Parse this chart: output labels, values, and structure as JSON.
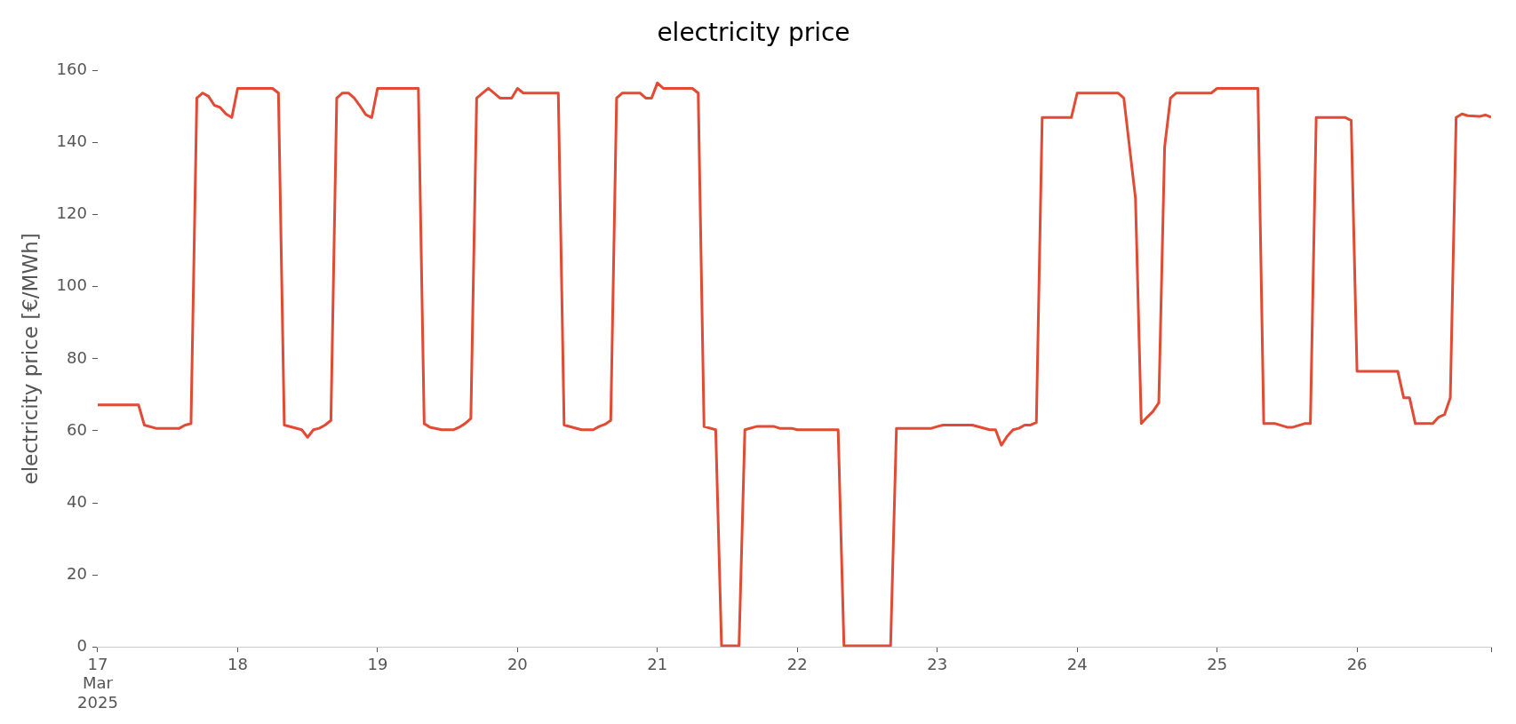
{
  "chart_data": {
    "type": "line",
    "title": "electricity price",
    "ylabel": "electricity price [€/MWh]",
    "x": [
      "2025-03-17T00:00",
      "2025-03-17T07:00",
      "2025-03-17T08:00",
      "2025-03-17T10:00",
      "2025-03-17T14:00",
      "2025-03-17T15:00",
      "2025-03-17T16:00",
      "2025-03-17T17:00",
      "2025-03-17T18:00",
      "2025-03-17T19:00",
      "2025-03-17T20:00",
      "2025-03-17T21:00",
      "2025-03-17T22:00",
      "2025-03-17T23:00",
      "2025-03-18T00:00",
      "2025-03-18T06:00",
      "2025-03-18T07:00",
      "2025-03-18T08:00",
      "2025-03-18T11:00",
      "2025-03-18T12:00",
      "2025-03-18T13:00",
      "2025-03-18T14:00",
      "2025-03-18T15:00",
      "2025-03-18T16:00",
      "2025-03-18T17:00",
      "2025-03-18T18:00",
      "2025-03-18T19:00",
      "2025-03-18T20:00",
      "2025-03-18T21:00",
      "2025-03-18T22:00",
      "2025-03-18T23:00",
      "2025-03-19T00:00",
      "2025-03-19T07:00",
      "2025-03-19T08:00",
      "2025-03-19T09:00",
      "2025-03-19T11:00",
      "2025-03-19T13:00",
      "2025-03-19T14:00",
      "2025-03-19T15:00",
      "2025-03-19T16:00",
      "2025-03-19T17:00",
      "2025-03-19T19:00",
      "2025-03-19T21:00",
      "2025-03-19T23:00",
      "2025-03-20T00:00",
      "2025-03-20T01:00",
      "2025-03-20T07:00",
      "2025-03-20T08:00",
      "2025-03-20T11:00",
      "2025-03-20T13:00",
      "2025-03-20T14:00",
      "2025-03-20T15:00",
      "2025-03-20T16:00",
      "2025-03-20T17:00",
      "2025-03-20T18:00",
      "2025-03-20T21:00",
      "2025-03-20T22:00",
      "2025-03-20T23:00",
      "2025-03-21T00:00",
      "2025-03-21T01:00",
      "2025-03-21T06:00",
      "2025-03-21T07:00",
      "2025-03-21T08:00",
      "2025-03-21T10:00",
      "2025-03-21T11:00",
      "2025-03-21T14:00",
      "2025-03-21T15:00",
      "2025-03-21T17:00",
      "2025-03-21T20:00",
      "2025-03-21T21:00",
      "2025-03-21T23:00",
      "2025-03-22T00:00",
      "2025-03-22T07:00",
      "2025-03-22T08:00",
      "2025-03-22T16:00",
      "2025-03-22T17:00",
      "2025-03-22T23:00",
      "2025-03-23T00:00",
      "2025-03-23T01:00",
      "2025-03-23T06:00",
      "2025-03-23T09:00",
      "2025-03-23T10:00",
      "2025-03-23T11:00",
      "2025-03-23T12:00",
      "2025-03-23T13:00",
      "2025-03-23T14:00",
      "2025-03-23T15:00",
      "2025-03-23T16:00",
      "2025-03-23T17:00",
      "2025-03-23T18:00",
      "2025-03-23T23:00",
      "2025-03-24T00:00",
      "2025-03-24T07:00",
      "2025-03-24T08:00",
      "2025-03-24T10:00",
      "2025-03-24T11:00",
      "2025-03-24T12:00",
      "2025-03-24T13:00",
      "2025-03-24T14:00",
      "2025-03-24T15:00",
      "2025-03-24T16:00",
      "2025-03-24T17:00",
      "2025-03-24T23:00",
      "2025-03-25T00:00",
      "2025-03-25T07:00",
      "2025-03-25T08:00",
      "2025-03-25T10:00",
      "2025-03-25T12:00",
      "2025-03-25T13:00",
      "2025-03-25T15:00",
      "2025-03-25T16:00",
      "2025-03-25T17:00",
      "2025-03-25T22:00",
      "2025-03-25T23:00",
      "2025-03-26T00:00",
      "2025-03-26T07:00",
      "2025-03-26T08:00",
      "2025-03-26T09:00",
      "2025-03-26T10:00",
      "2025-03-26T13:00",
      "2025-03-26T14:00",
      "2025-03-26T15:00",
      "2025-03-26T16:00",
      "2025-03-26T17:00",
      "2025-03-26T18:00",
      "2025-03-26T19:00",
      "2025-03-26T21:00",
      "2025-03-26T22:00",
      "2025-03-26T23:00"
    ],
    "series": [
      {
        "color": "#e24a33",
        "values": [
          67.2,
          67.2,
          61.6,
          60.7,
          60.7,
          61.6,
          62,
          152.4,
          153.8,
          152.9,
          150.4,
          149.8,
          148,
          147,
          155.1,
          155.1,
          153.8,
          61.6,
          60.3,
          58.2,
          60.3,
          60.7,
          61.6,
          62.9,
          152.4,
          153.8,
          153.8,
          152.4,
          150.2,
          147.8,
          147,
          155.1,
          155.1,
          62,
          61,
          60.3,
          60.3,
          61,
          62,
          63.4,
          152.4,
          155.1,
          152.4,
          152.4,
          155.1,
          153.8,
          153.8,
          61.6,
          60.3,
          60.3,
          61.2,
          61.8,
          62.9,
          152.4,
          153.8,
          153.8,
          152.4,
          152.4,
          156.6,
          155.1,
          155.1,
          153.8,
          61.2,
          60.3,
          0.3,
          0.3,
          60.3,
          61.2,
          61.2,
          60.7,
          60.7,
          60.3,
          60.3,
          0.3,
          0.3,
          60.7,
          60.7,
          61.2,
          61.6,
          61.6,
          60.3,
          60.3,
          56,
          58.5,
          60.3,
          60.7,
          61.6,
          61.6,
          62.3,
          147,
          147,
          153.8,
          153.8,
          152.4,
          124.6,
          62,
          63.8,
          65.4,
          67.8,
          138.8,
          152.4,
          153.8,
          153.8,
          155.1,
          155.1,
          62,
          62,
          61,
          61,
          62,
          62,
          147,
          147,
          146.2,
          76.5,
          76.5,
          69.2,
          69.2,
          62,
          62,
          63.8,
          64.5,
          69.2,
          147,
          148,
          147.5,
          147.3,
          147.7,
          147.1
        ]
      }
    ],
    "xticks": [
      {
        "value": "2025-03-17",
        "label": "17\nMar\n2025"
      },
      {
        "value": "2025-03-18",
        "label": "18"
      },
      {
        "value": "2025-03-19",
        "label": "19"
      },
      {
        "value": "2025-03-20",
        "label": "20"
      },
      {
        "value": "2025-03-21",
        "label": "21"
      },
      {
        "value": "2025-03-22",
        "label": "22"
      },
      {
        "value": "2025-03-23",
        "label": "23"
      },
      {
        "value": "2025-03-24",
        "label": "24"
      },
      {
        "value": "2025-03-25",
        "label": "25"
      },
      {
        "value": "2025-03-26",
        "label": "26"
      },
      {
        "value": "2025-03-26T23:00",
        "label": null
      }
    ],
    "xlim": [
      "2025-03-17T00:00",
      "2025-03-26T23:00"
    ],
    "ylim": [
      0,
      160
    ],
    "yticks": [
      0,
      20,
      40,
      60,
      80,
      100,
      120,
      140,
      160
    ]
  }
}
